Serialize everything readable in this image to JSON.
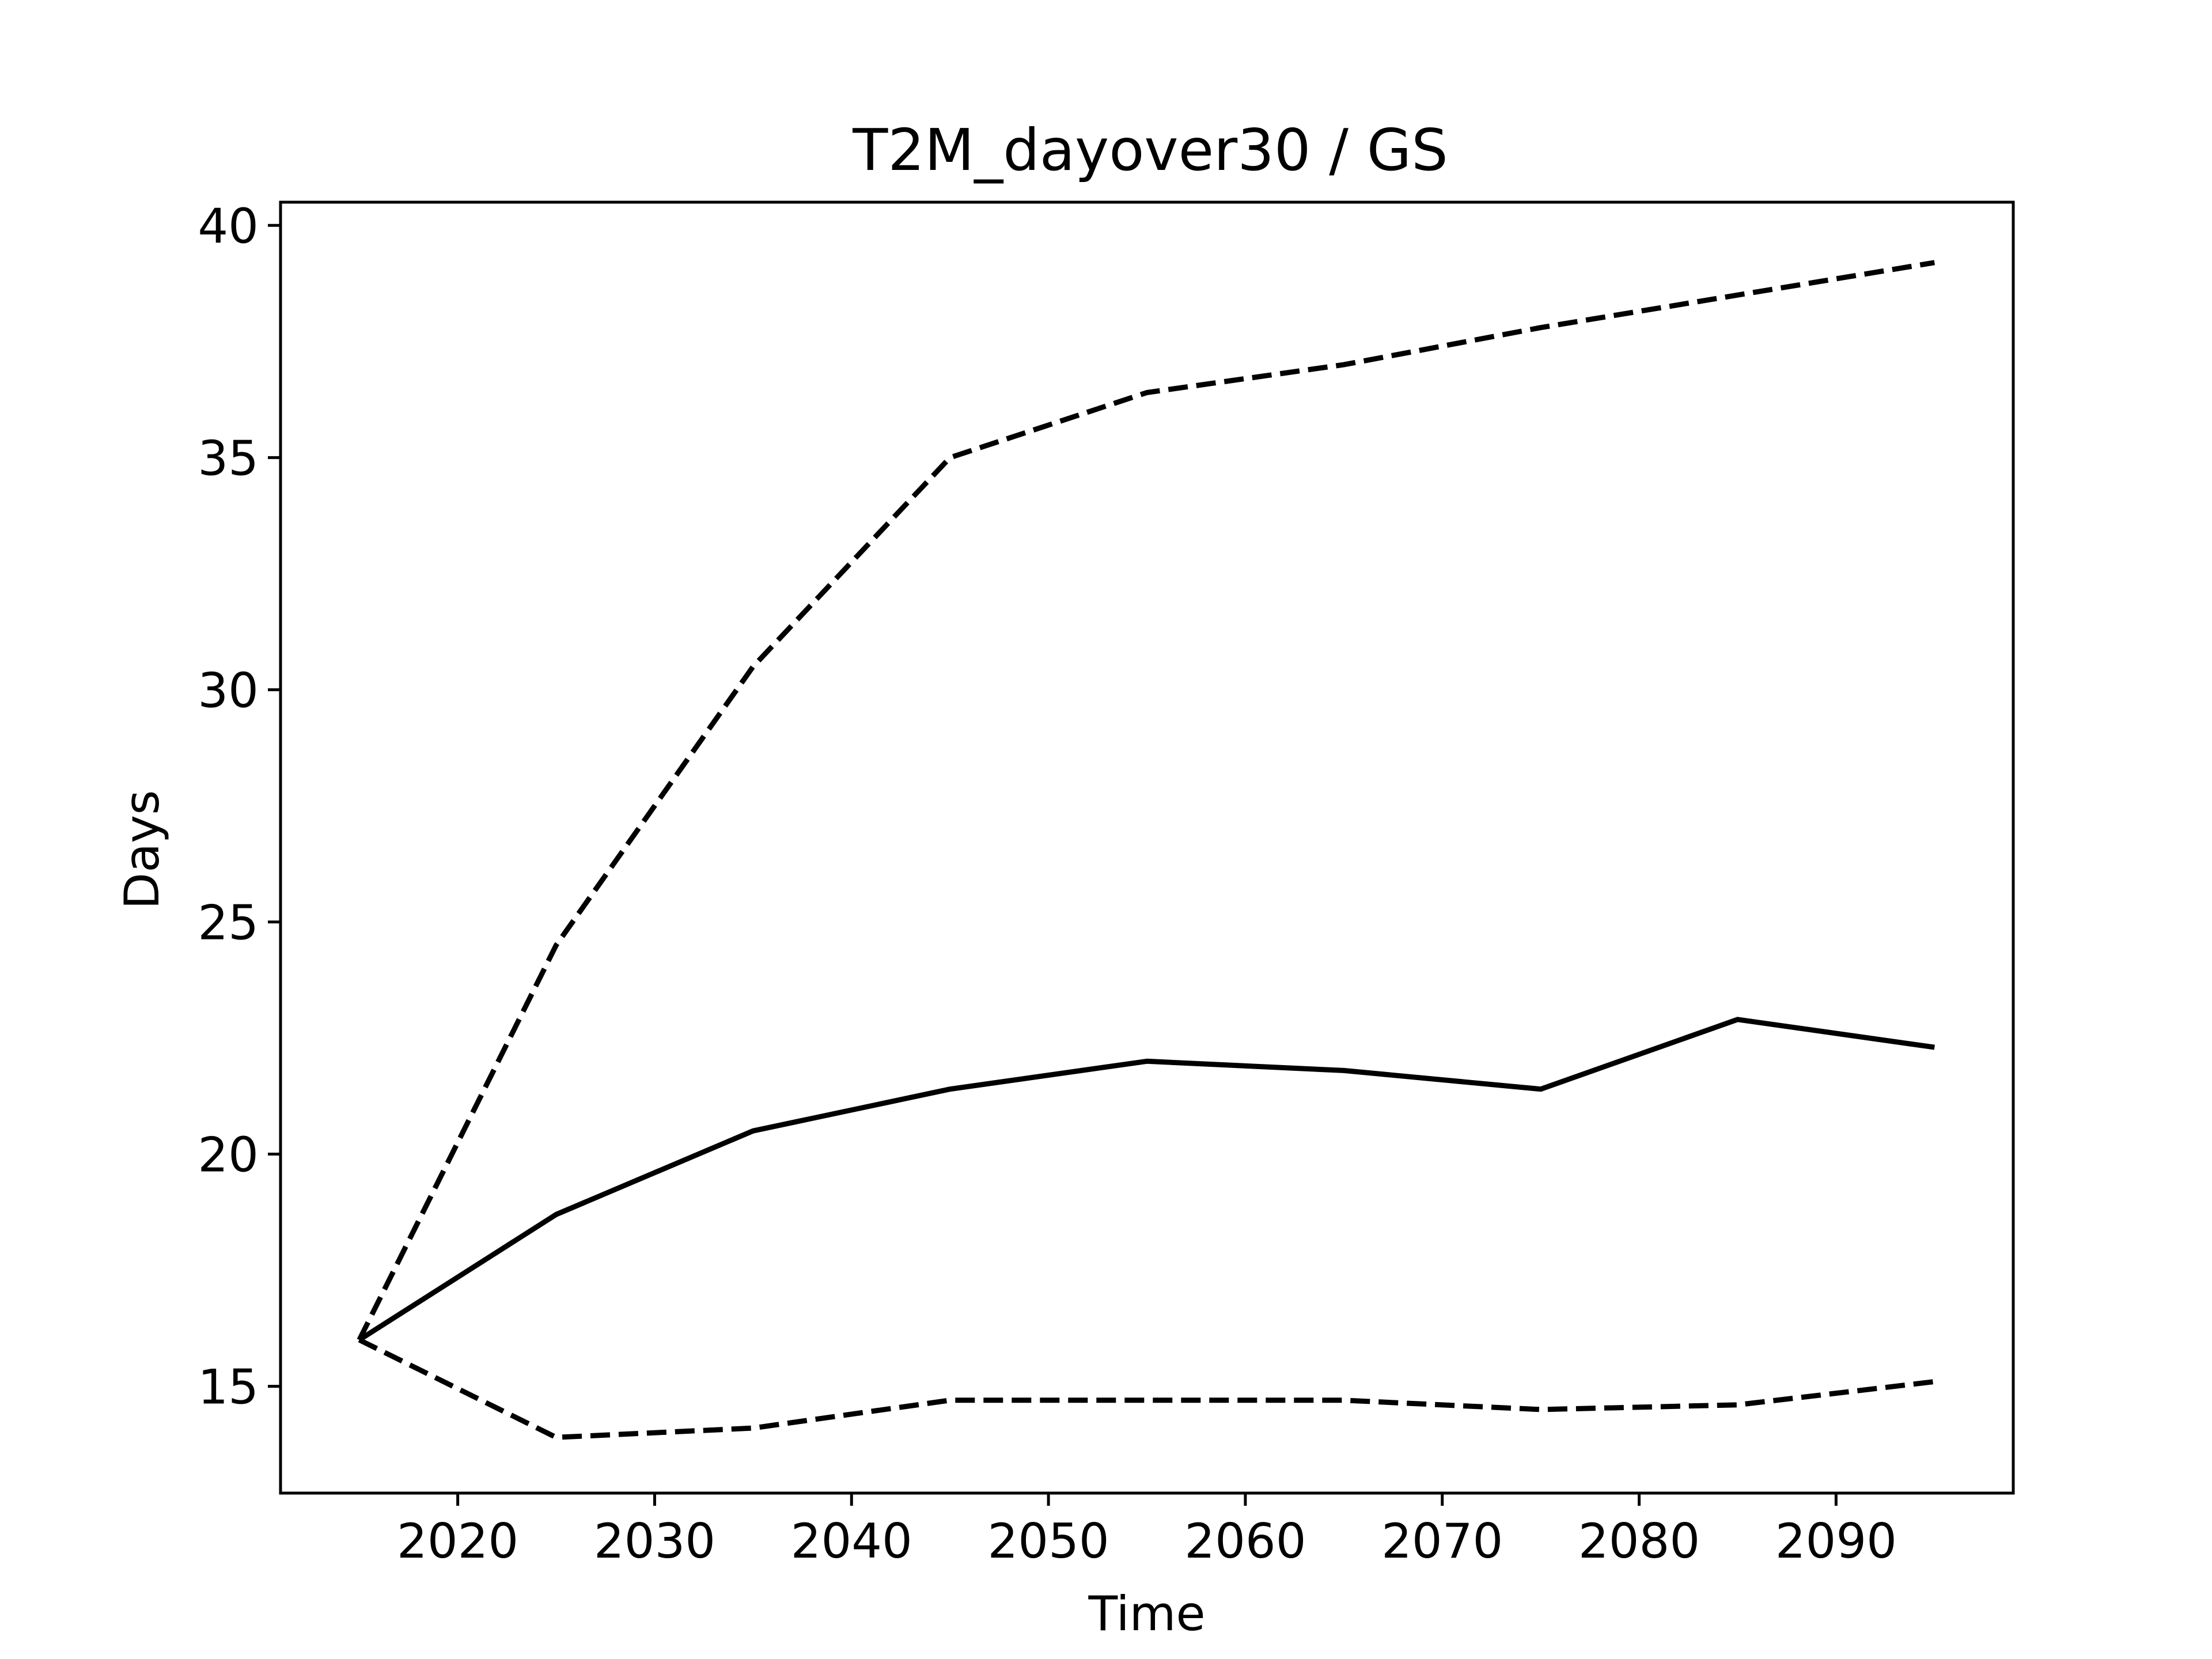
{
  "chart_data": {
    "type": "line",
    "title": "T2M_dayover30 / GS",
    "xlabel": "Time",
    "ylabel": "Days",
    "xlim": [
      2011,
      2099
    ],
    "ylim": [
      12.7,
      40.5
    ],
    "xticks": [
      2020,
      2030,
      2040,
      2050,
      2060,
      2070,
      2080,
      2090
    ],
    "yticks": [
      15,
      20,
      25,
      30,
      35,
      40
    ],
    "grid": false,
    "legend": "none",
    "x": [
      2015,
      2025,
      2035,
      2045,
      2055,
      2065,
      2075,
      2085,
      2095
    ],
    "series": [
      {
        "style": "solid",
        "color": "#000000",
        "values": [
          16.0,
          18.7,
          20.5,
          21.4,
          22.0,
          21.8,
          21.4,
          22.9,
          22.3
        ]
      },
      {
        "style": "dashed",
        "color": "#000000",
        "values": [
          16.0,
          24.5,
          30.5,
          35.0,
          36.4,
          37.0,
          37.8,
          38.5,
          39.2
        ]
      },
      {
        "style": "dashed",
        "color": "#000000",
        "values": [
          16.0,
          13.9,
          14.1,
          14.7,
          14.7,
          14.7,
          14.5,
          14.6,
          15.1
        ]
      }
    ]
  }
}
